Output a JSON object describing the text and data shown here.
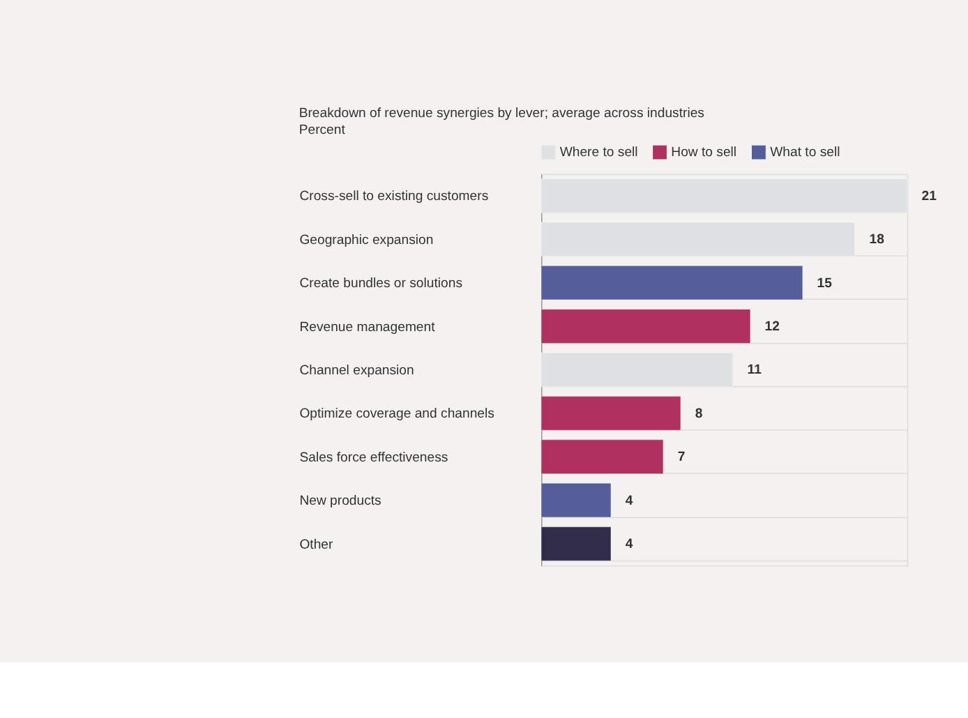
{
  "chart_data": {
    "type": "bar",
    "orientation": "horizontal",
    "title": "Breakdown of revenue synergies by lever; average across industries",
    "subtitle": "Percent",
    "categories": [
      "Cross-sell to existing customers",
      "Geographic expansion",
      "Create bundles or solutions",
      "Revenue management",
      "Channel expansion",
      "Optimize coverage and channels",
      "Sales force effectiveness",
      "New products",
      "Other"
    ],
    "series": [
      {
        "name": "Where to sell",
        "color": "#e0e1e3",
        "values": [
          21,
          18,
          null,
          null,
          11,
          null,
          null,
          null,
          null
        ]
      },
      {
        "name": "How to sell",
        "color": "#b03060",
        "values": [
          null,
          null,
          null,
          12,
          null,
          8,
          7,
          null,
          null
        ]
      },
      {
        "name": "What to sell",
        "color": "#555d9b",
        "values": [
          null,
          null,
          15,
          null,
          null,
          null,
          null,
          4,
          null
        ]
      },
      {
        "color": "#312c4a",
        "values": [
          null,
          null,
          null,
          null,
          null,
          null,
          null,
          null,
          4
        ]
      }
    ],
    "data_labels": true,
    "grid": "y",
    "legend": "top left"
  }
}
